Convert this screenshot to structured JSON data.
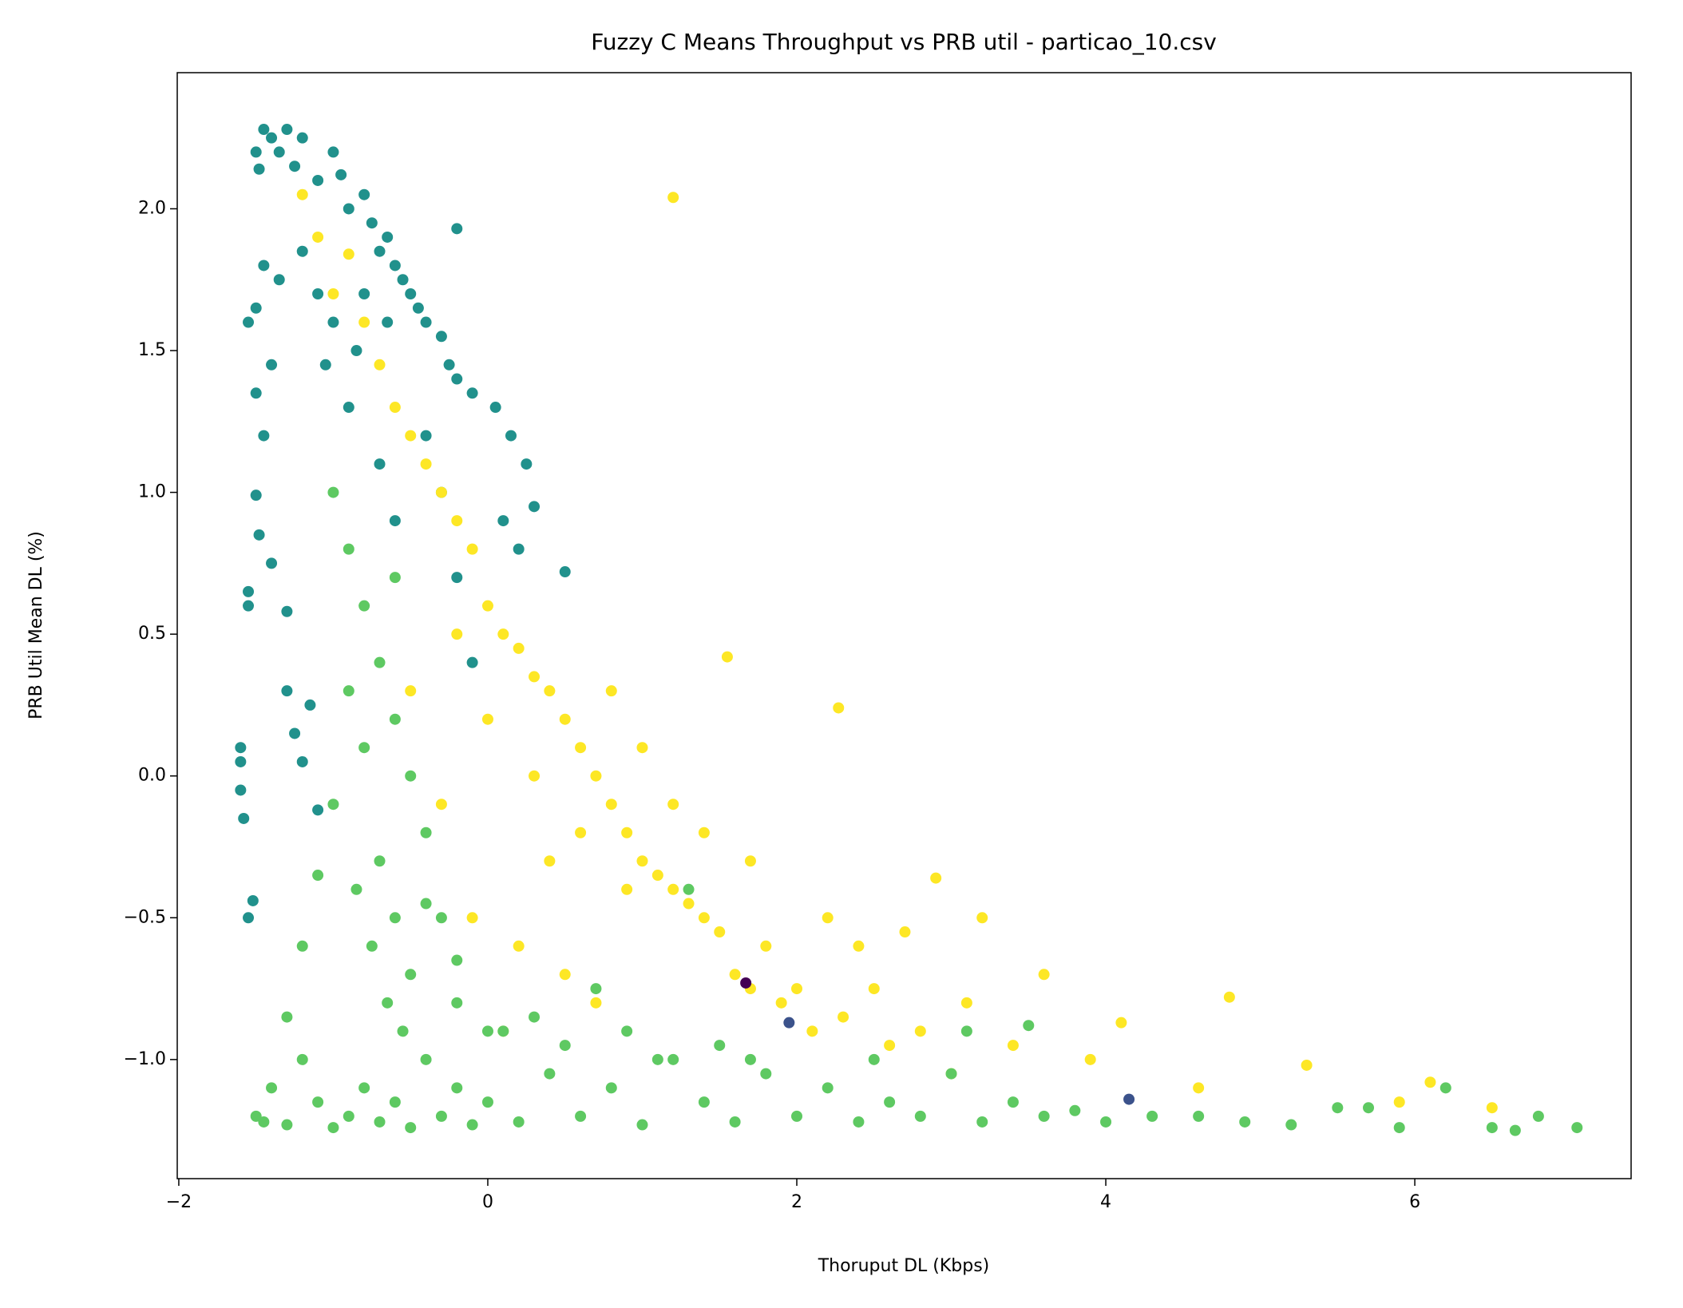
{
  "chart_data": {
    "type": "scatter",
    "title": "Fuzzy C Means Throughput vs PRB util - particao_10.csv",
    "xlabel": "Thoruput DL (Kbps)",
    "ylabel": "PRB Util Mean DL (%)",
    "xlim": [
      -2.01,
      7.4
    ],
    "ylim": [
      -1.42,
      2.48
    ],
    "xticks": [
      {
        "value": -2,
        "label": "−2"
      },
      0,
      2,
      4,
      6
    ],
    "yticks": [
      {
        "value": -1.0,
        "label": "−1.0"
      },
      {
        "value": -0.5,
        "label": "−0.5"
      },
      {
        "value": 0.0,
        "label": "0.0"
      },
      0.5,
      {
        "value": 1.0,
        "label": "1.0"
      },
      1.5,
      {
        "value": 2.0,
        "label": "2.0"
      }
    ],
    "grid": false,
    "series": [
      {
        "color": "#21918c",
        "x": [
          -1.45,
          -1.4,
          -1.35,
          -1.3,
          -1.25,
          -1.2,
          -1.5,
          -1.48,
          -1.1,
          -1.0,
          -0.95,
          -0.9,
          -0.8,
          -0.75,
          -0.7,
          -0.65,
          -0.6,
          -0.55,
          -0.5,
          -0.45,
          -0.4,
          -0.3,
          -0.25,
          -0.2,
          -0.1,
          0.05,
          0.25,
          0.15,
          0.3,
          0.5,
          -0.2,
          -1.55,
          -1.5,
          -1.45,
          -1.35,
          -1.4,
          -1.5,
          -1.45,
          -1.5,
          -1.48,
          -1.4,
          -1.55,
          -1.55,
          -1.3,
          -1.6,
          -1.6,
          -1.6,
          -1.58,
          -1.52,
          -1.55,
          -1.3,
          -1.25,
          -1.2,
          -1.1,
          -1.15,
          -0.9,
          -0.85,
          -1.0,
          -1.1,
          -0.7,
          -0.6,
          -0.4,
          -0.3,
          0.1,
          0.2,
          -0.8,
          -0.65,
          -1.05,
          -1.2,
          -0.2,
          -0.1
        ],
        "values": [
          2.28,
          2.25,
          2.2,
          2.28,
          2.15,
          2.25,
          2.2,
          2.14,
          2.1,
          2.2,
          2.12,
          2.0,
          2.05,
          1.95,
          1.85,
          1.9,
          1.8,
          1.75,
          1.7,
          1.65,
          1.6,
          1.55,
          1.45,
          1.4,
          1.35,
          1.3,
          1.1,
          1.2,
          0.95,
          0.72,
          1.93,
          1.6,
          1.65,
          1.8,
          1.75,
          1.45,
          1.35,
          1.2,
          0.99,
          0.85,
          0.75,
          0.65,
          0.6,
          0.58,
          0.1,
          0.05,
          -0.05,
          -0.15,
          -0.44,
          -0.5,
          0.3,
          0.15,
          0.05,
          -0.12,
          0.25,
          1.3,
          1.5,
          1.6,
          1.7,
          1.1,
          0.9,
          1.2,
          1.0,
          0.9,
          0.8,
          1.7,
          1.6,
          1.45,
          1.85,
          0.7,
          0.4
        ]
      },
      {
        "color": "#fde725",
        "x": [
          -1.2,
          -1.1,
          -1.0,
          -0.9,
          -0.8,
          -0.7,
          -0.6,
          -0.5,
          -0.4,
          -0.3,
          -0.2,
          -0.1,
          0.0,
          0.1,
          0.2,
          0.3,
          0.4,
          0.5,
          0.6,
          0.7,
          0.8,
          0.9,
          1.0,
          1.1,
          1.2,
          1.3,
          1.4,
          1.5,
          1.6,
          1.7,
          1.8,
          1.9,
          2.0,
          2.1,
          2.2,
          2.3,
          2.5,
          2.6,
          2.8,
          2.9,
          3.0,
          3.2,
          3.4,
          3.6,
          3.9,
          4.1,
          4.6,
          4.8,
          5.3,
          5.9,
          6.1,
          6.5,
          1.2,
          2.27,
          1.55,
          -0.2,
          0.0,
          0.3,
          0.6,
          0.9,
          1.2,
          0.4,
          0.8,
          1.0,
          -0.1,
          0.2,
          0.5,
          0.7,
          1.4,
          1.7,
          2.4,
          3.1,
          2.7,
          -0.5,
          -0.3,
          0.1
        ],
        "values": [
          2.05,
          1.9,
          1.7,
          1.84,
          1.6,
          1.45,
          1.3,
          1.2,
          1.1,
          1.0,
          0.9,
          0.8,
          0.6,
          0.5,
          0.45,
          0.35,
          0.3,
          0.2,
          0.1,
          0.0,
          -0.1,
          -0.2,
          -0.3,
          -0.35,
          -0.4,
          -0.45,
          -0.5,
          -0.55,
          -0.7,
          -0.75,
          -0.6,
          -0.8,
          -0.75,
          -0.9,
          -0.5,
          -0.85,
          -0.75,
          -0.95,
          -0.9,
          -0.36,
          -1.05,
          -0.5,
          -0.95,
          -0.7,
          -1.0,
          -0.87,
          -1.1,
          -0.78,
          -1.02,
          -1.15,
          -1.08,
          -1.17,
          2.04,
          0.24,
          0.42,
          0.5,
          0.2,
          0.0,
          -0.2,
          -0.4,
          -0.1,
          -0.3,
          0.3,
          0.1,
          -0.5,
          -0.6,
          -0.7,
          -0.8,
          -0.2,
          -0.3,
          -0.6,
          -0.8,
          -0.55,
          0.3,
          -0.1,
          -0.9
        ]
      },
      {
        "color": "#5ec962",
        "x": [
          -1.5,
          -1.45,
          -1.4,
          -1.3,
          -1.2,
          -1.1,
          -1.0,
          -0.9,
          -0.8,
          -0.7,
          -0.6,
          -0.5,
          -0.4,
          -0.3,
          -0.2,
          -0.1,
          0.0,
          0.2,
          0.4,
          0.6,
          0.8,
          1.0,
          1.2,
          1.4,
          1.6,
          1.8,
          2.0,
          2.2,
          2.4,
          2.6,
          2.8,
          3.0,
          3.2,
          3.4,
          3.6,
          3.8,
          4.0,
          4.3,
          4.6,
          4.9,
          5.2,
          5.5,
          5.9,
          6.2,
          6.5,
          6.8,
          7.05,
          -1.0,
          -0.9,
          -0.8,
          -0.7,
          -0.6,
          -0.5,
          -0.4,
          -0.9,
          -0.8,
          -0.7,
          -0.6,
          -0.5,
          -0.85,
          -0.75,
          -0.65,
          -0.55,
          -1.1,
          -1.2,
          -1.3,
          -1.0,
          -0.3,
          -0.2,
          0.1,
          0.3,
          0.5,
          0.7,
          0.9,
          1.1,
          1.3,
          1.5,
          1.7,
          -0.6,
          -0.4,
          -0.2,
          0.0,
          2.5,
          3.1,
          3.5,
          5.7,
          6.65
        ],
        "values": [
          -1.2,
          -1.22,
          -1.1,
          -1.23,
          -1.0,
          -1.15,
          -1.24,
          -1.2,
          -1.1,
          -1.22,
          -1.15,
          -1.24,
          -1.0,
          -1.2,
          -1.1,
          -1.23,
          -1.15,
          -1.22,
          -1.05,
          -1.2,
          -1.1,
          -1.23,
          -1.0,
          -1.15,
          -1.22,
          -1.05,
          -1.2,
          -1.1,
          -1.22,
          -1.15,
          -1.2,
          -1.05,
          -1.22,
          -1.15,
          -1.2,
          -1.18,
          -1.22,
          -1.2,
          -1.2,
          -1.22,
          -1.23,
          -1.17,
          -1.24,
          -1.1,
          -1.24,
          -1.2,
          -1.24,
          1.0,
          0.8,
          0.6,
          0.4,
          0.2,
          0.0,
          -0.2,
          0.3,
          0.1,
          -0.3,
          -0.5,
          -0.7,
          -0.4,
          -0.6,
          -0.8,
          -0.9,
          -0.35,
          -0.6,
          -0.85,
          -0.1,
          -0.5,
          -0.8,
          -0.9,
          -0.85,
          -0.95,
          -0.75,
          -0.9,
          -1.0,
          -0.4,
          -0.95,
          -1.0,
          0.7,
          -0.45,
          -0.65,
          -0.9,
          -1.0,
          -0.9,
          -0.88,
          -1.17,
          -1.25
        ]
      },
      {
        "color": "#3b528b",
        "x": [
          1.95,
          4.15
        ],
        "values": [
          -0.87,
          -1.14
        ]
      },
      {
        "color": "#440154",
        "x": [
          1.67
        ],
        "values": [
          -0.73
        ]
      }
    ]
  }
}
